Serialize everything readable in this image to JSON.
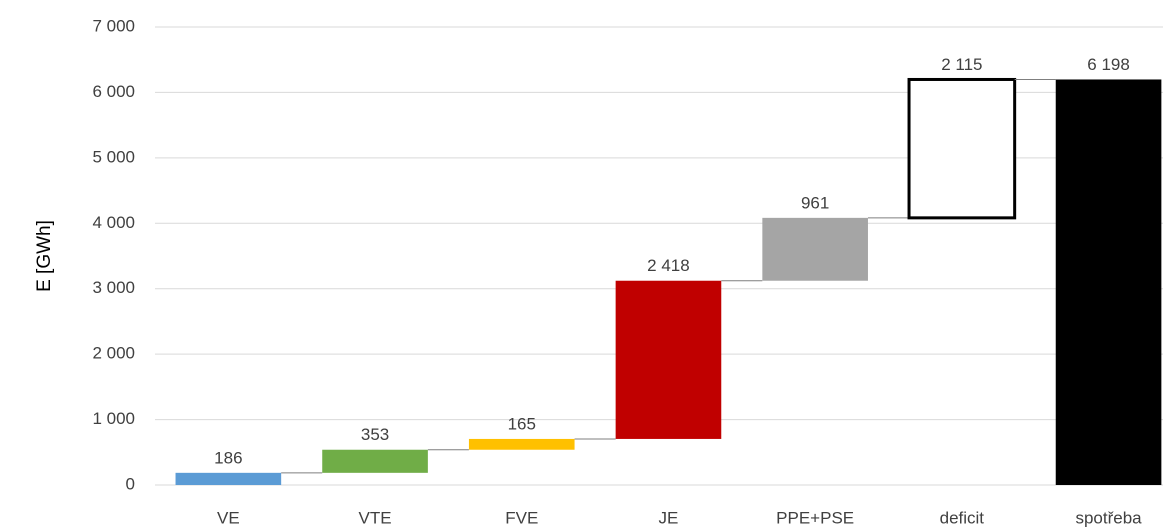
{
  "chart_data": {
    "type": "waterfall",
    "y_label": "E [GWh]",
    "categories": [
      "VE",
      "VTE",
      "FVE",
      "JE",
      "PPE+PSE",
      "deficit",
      "spotřeba"
    ],
    "values": [
      186,
      353,
      165,
      2418,
      961,
      2115,
      6198
    ],
    "value_labels": [
      "186",
      "353",
      "165",
      "2 418",
      "961",
      "2 115",
      "6 198"
    ],
    "colors": [
      "#5b9bd5",
      "#70ad47",
      "#ffc000",
      "#c00000",
      "#a5a5a5",
      "#ffffff",
      "#000000"
    ],
    "last_is_total": true,
    "ylim": [
      0,
      7000
    ],
    "yticks": [
      0,
      {
        "value": 1000,
        "label": "1 000"
      },
      {
        "value": 2000,
        "label": "2 000"
      },
      {
        "value": 3000,
        "label": "3 000"
      },
      {
        "value": 4000,
        "label": "4 000"
      },
      {
        "value": 5000,
        "label": "5 000"
      },
      {
        "value": 6000,
        "label": "6 000"
      },
      {
        "value": 7000,
        "label": "7 000"
      }
    ],
    "grid": true
  }
}
